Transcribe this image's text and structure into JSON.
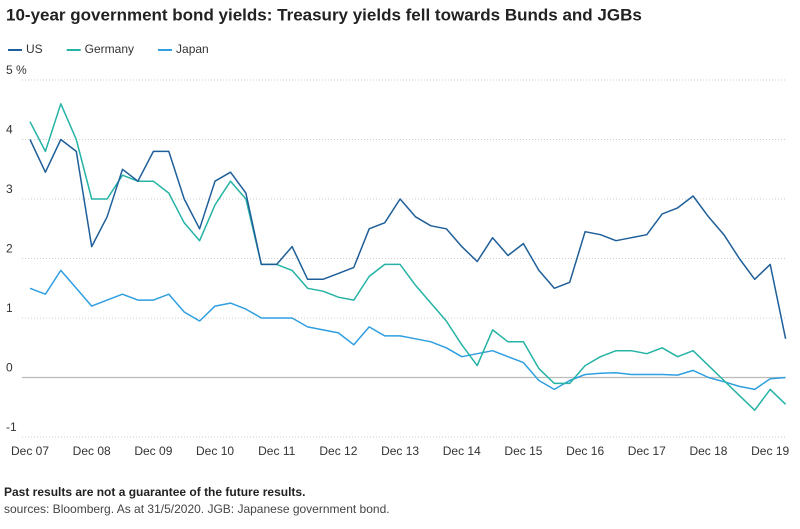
{
  "chart_data": {
    "type": "line",
    "title": "10-year government bond yields: Treasury yields fell towards Bunds and JGBs",
    "footnote": "Past results are not a guarantee of the future results.",
    "source": "sources: Bloomberg. As at 31/5/2020. JGB: Japanese government bond.",
    "categories": [
      "Dec 07",
      null,
      null,
      null,
      "Dec 08",
      null,
      null,
      null,
      "Dec 09",
      null,
      null,
      null,
      "Dec 10",
      null,
      null,
      null,
      "Dec 11",
      null,
      null,
      null,
      "Dec 12",
      null,
      null,
      null,
      "Dec 13",
      null,
      null,
      null,
      "Dec 14",
      null,
      null,
      null,
      "Dec 15",
      null,
      null,
      null,
      "Dec 16",
      null,
      null,
      null,
      "Dec 17",
      null,
      null,
      null,
      "Dec 18",
      null,
      null,
      null,
      "Dec 19",
      null
    ],
    "series": [
      {
        "name": "US",
        "color": "#1f5f99",
        "values": [
          4.0,
          3.45,
          4.0,
          3.8,
          2.2,
          2.7,
          3.5,
          3.3,
          3.8,
          3.8,
          3.0,
          2.5,
          3.3,
          3.45,
          3.1,
          1.9,
          1.9,
          2.2,
          1.65,
          1.65,
          1.75,
          1.85,
          2.5,
          2.6,
          3.0,
          2.7,
          2.55,
          2.5,
          2.2,
          1.95,
          2.35,
          2.05,
          2.25,
          1.8,
          1.5,
          1.6,
          2.45,
          2.4,
          2.3,
          2.35,
          2.4,
          2.75,
          2.85,
          3.05,
          2.7,
          2.4,
          2.0,
          1.65,
          1.9,
          0.65
        ]
      },
      {
        "name": "Germany",
        "color": "#25b3a5",
        "values": [
          4.3,
          3.8,
          4.6,
          4.0,
          3.0,
          3.0,
          3.4,
          3.3,
          3.3,
          3.1,
          2.6,
          2.3,
          2.9,
          3.3,
          3.0,
          1.9,
          1.9,
          1.8,
          1.5,
          1.45,
          1.35,
          1.3,
          1.7,
          1.9,
          1.9,
          1.55,
          1.25,
          0.95,
          0.55,
          0.2,
          0.8,
          0.6,
          0.6,
          0.15,
          -0.1,
          -0.1,
          0.2,
          0.35,
          0.45,
          0.45,
          0.4,
          0.5,
          0.35,
          0.45,
          0.2,
          -0.05,
          -0.3,
          -0.55,
          -0.2,
          -0.45
        ]
      },
      {
        "name": "Japan",
        "color": "#2f9fe0",
        "values": [
          1.5,
          1.4,
          1.8,
          1.5,
          1.2,
          1.3,
          1.4,
          1.3,
          1.3,
          1.4,
          1.1,
          0.95,
          1.2,
          1.25,
          1.15,
          1.0,
          1.0,
          1.0,
          0.85,
          0.8,
          0.75,
          0.55,
          0.85,
          0.7,
          0.7,
          0.65,
          0.6,
          0.5,
          0.35,
          0.4,
          0.45,
          0.35,
          0.25,
          -0.05,
          -0.2,
          -0.05,
          0.05,
          0.07,
          0.08,
          0.05,
          0.05,
          0.05,
          0.04,
          0.12,
          0.0,
          -0.07,
          -0.15,
          -0.2,
          -0.02,
          0.0
        ]
      }
    ],
    "ylim": [
      -1,
      5
    ],
    "yticks": [
      -1,
      0,
      1,
      2,
      3,
      4,
      {
        "value": 5,
        "label": "5 %"
      }
    ],
    "grid": true,
    "legend": "top-left"
  }
}
